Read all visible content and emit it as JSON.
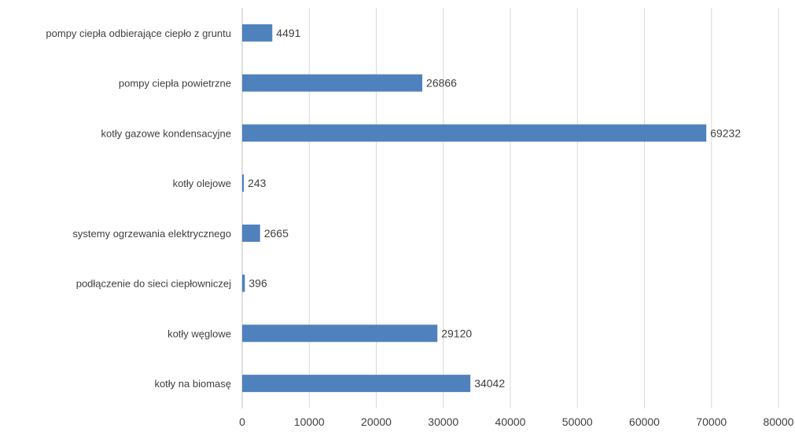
{
  "chart_data": {
    "type": "bar",
    "orientation": "horizontal",
    "categories": [
      "pompy ciepła odbierające ciepło z gruntu",
      "pompy ciepła powietrzne",
      "kotły gazowe kondensacyjne",
      "kotły olejowe",
      "systemy ogrzewania elektrycznego",
      "podłączenie do sieci ciepłowniczej",
      "kotły węglowe",
      "kotły na biomasę"
    ],
    "values": [
      4491,
      26866,
      69232,
      243,
      2665,
      396,
      29120,
      34042
    ],
    "xlim": [
      0,
      80000
    ],
    "xticks": [
      0,
      10000,
      20000,
      30000,
      40000,
      50000,
      60000,
      70000,
      80000
    ],
    "grid": true,
    "legend": "none",
    "bar_color": "#4f81bd"
  }
}
